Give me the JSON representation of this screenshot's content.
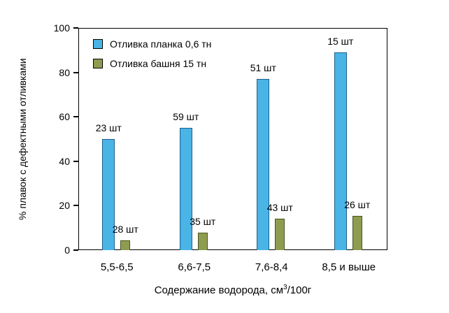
{
  "chart_data": {
    "type": "bar",
    "categories": [
      "5,5-6,5",
      "6,6-7,5",
      "7,6-8,4",
      "8,5 и выше"
    ],
    "series": [
      {
        "name": "Отливка планка 0,6 тн",
        "color": "#4ab4e6",
        "border_color": "#1c5f8f",
        "values": [
          50,
          55,
          77,
          89
        ],
        "labels": [
          "23 шт",
          "59 шт",
          "51 шт",
          "15 шт"
        ]
      },
      {
        "name": "Отливка башня 15 тн",
        "color": "#8d9c4f",
        "border_color": "#4a541f",
        "values": [
          4.5,
          8,
          14,
          15.5
        ],
        "labels": [
          "28 шт",
          "35 шт",
          "43 шт",
          "26 шт"
        ]
      }
    ],
    "title": "",
    "ylabel": "% плавок с дефектными отливками",
    "xlabel": "Содержание водорода, см3/100г",
    "xlabel_prefix": "Содержание водорода, см",
    "xlabel_sup": "3",
    "xlabel_suffix": "/100г",
    "ylim": [
      0,
      100
    ],
    "yticks": [
      0,
      20,
      40,
      60,
      80,
      100
    ],
    "grid": false,
    "legend_position": "top-left-inside"
  }
}
